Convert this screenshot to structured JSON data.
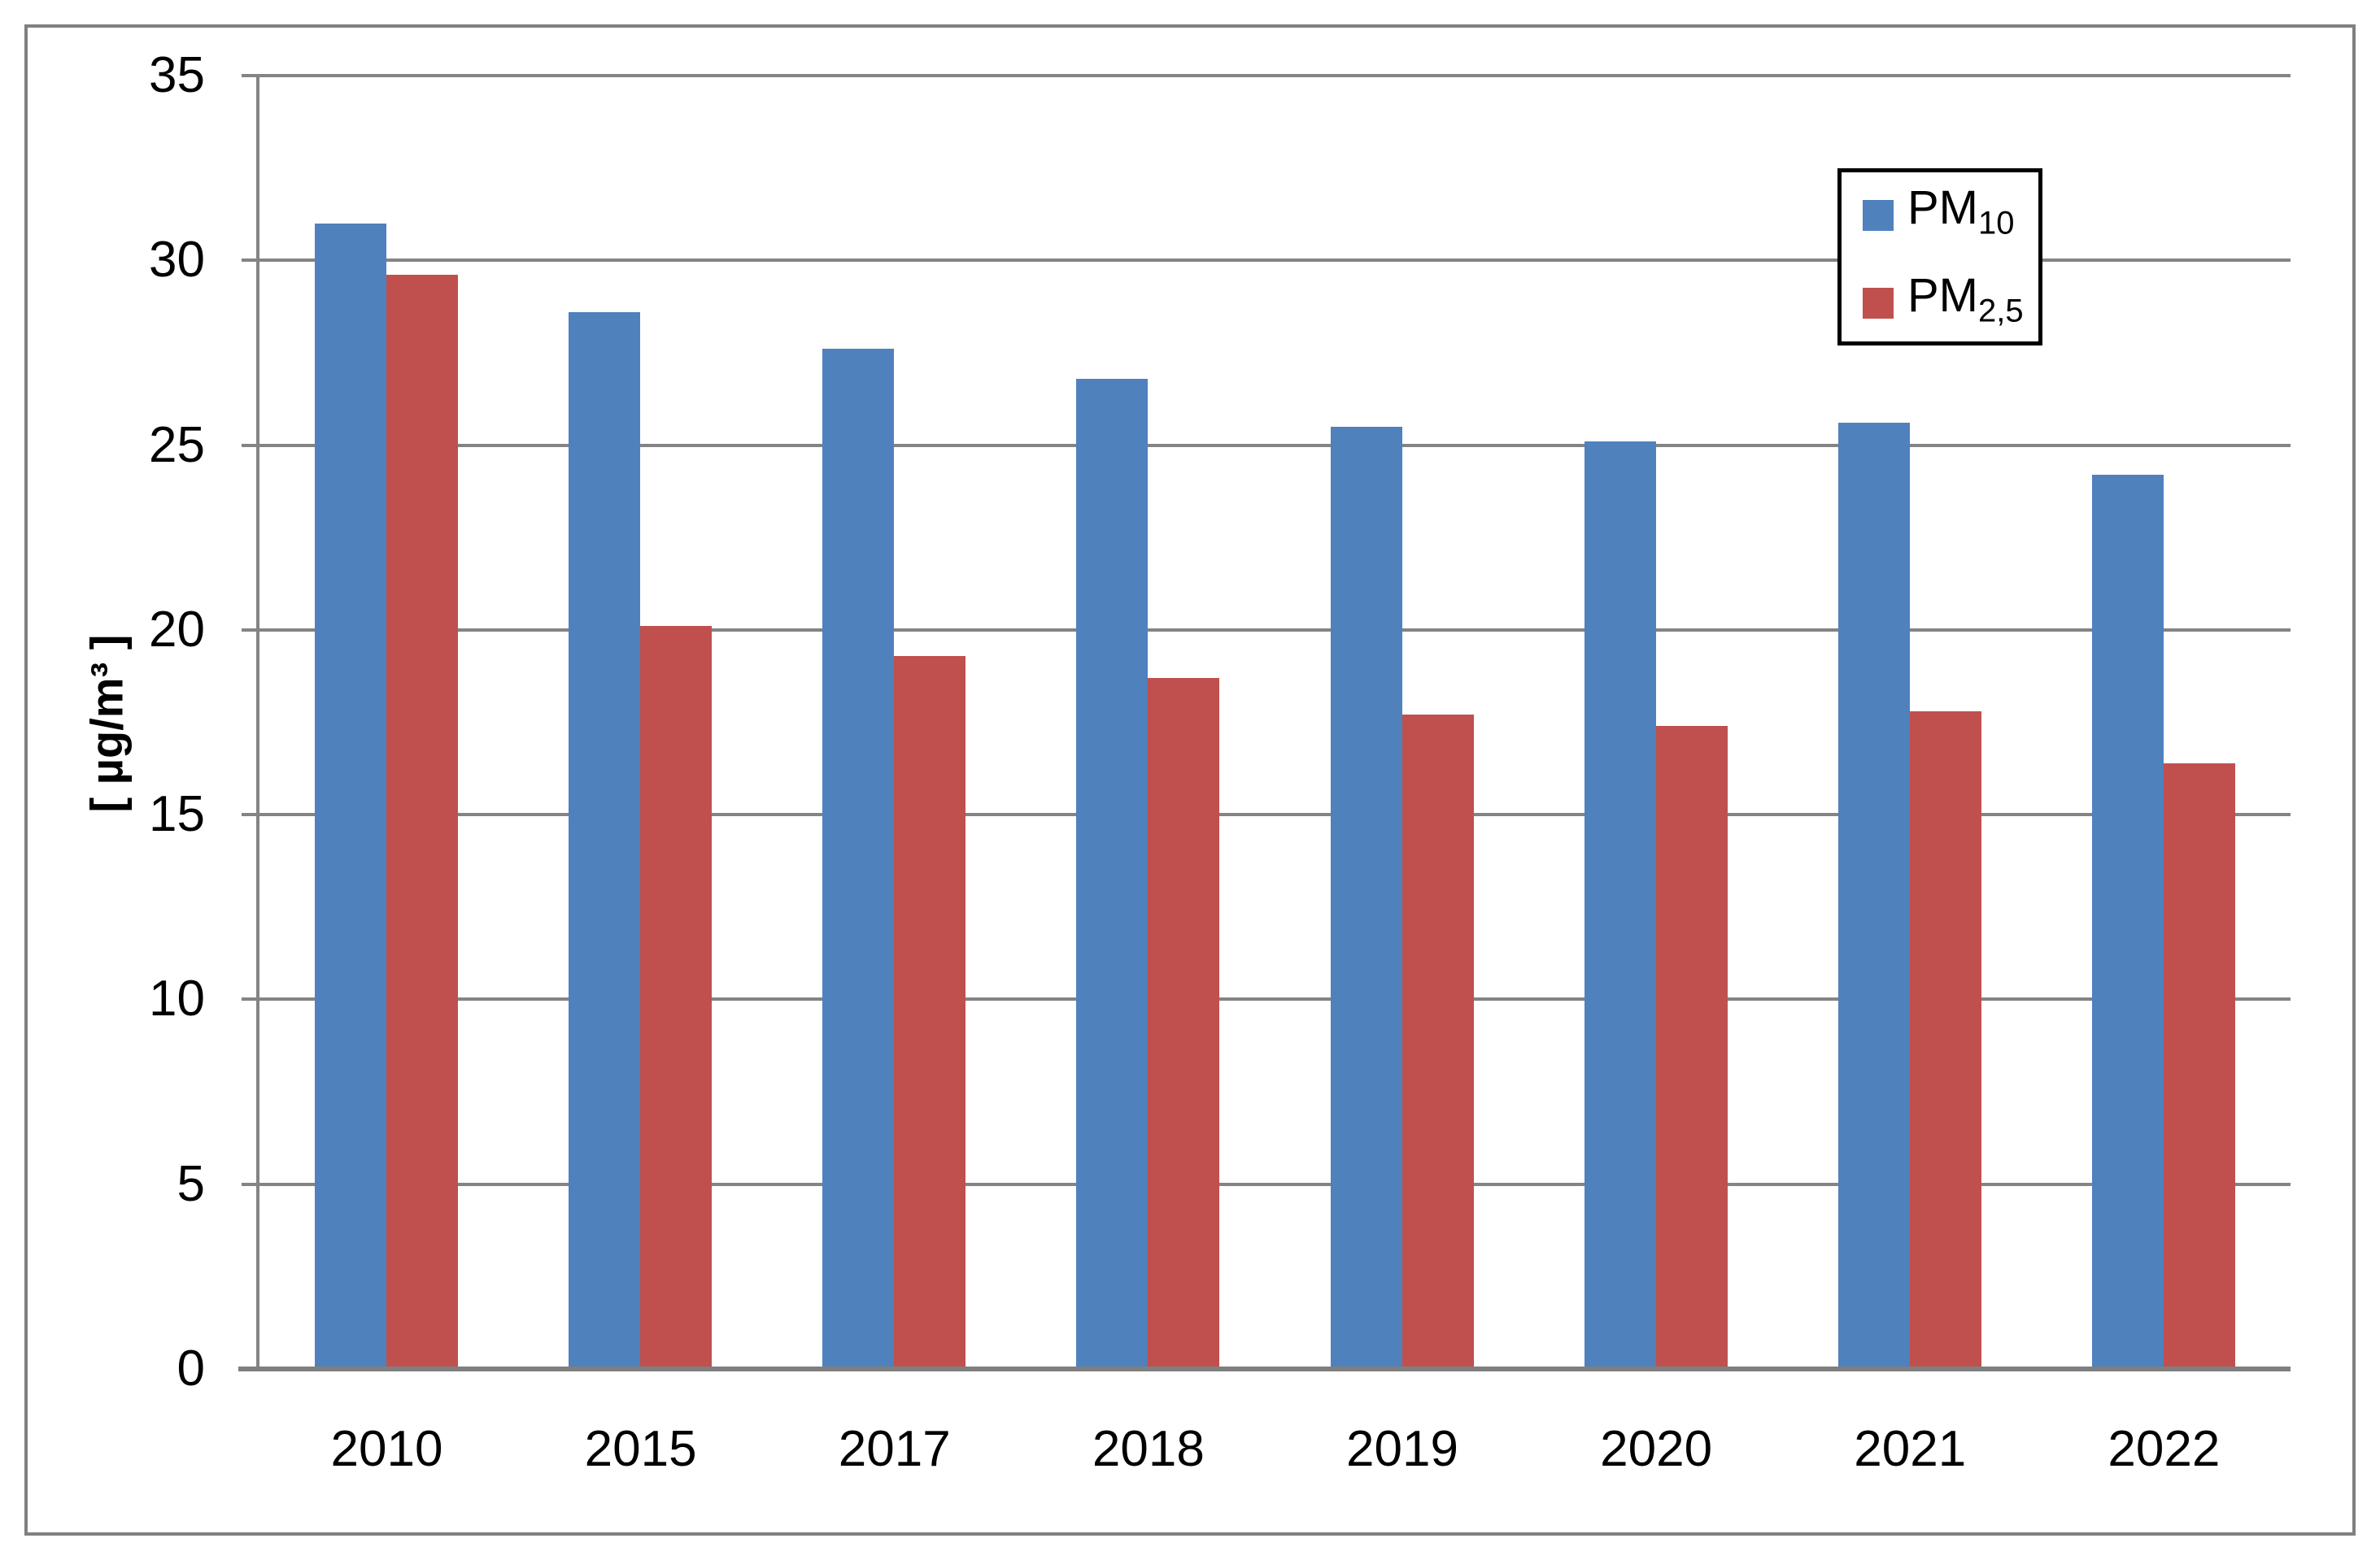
{
  "figure": {
    "background": "#FFFFFF",
    "border_color": "#808080"
  },
  "chart_data": {
    "type": "bar",
    "categories": [
      "2010",
      "2015",
      "2017",
      "2018",
      "2019",
      "2020",
      "2021",
      "2022"
    ],
    "series": [
      {
        "name": "PM10",
        "label_base": "PM",
        "label_sub": "10",
        "color": "#4F81BD",
        "values": [
          31.0,
          28.6,
          27.6,
          26.8,
          25.5,
          25.1,
          25.6,
          24.2
        ]
      },
      {
        "name": "PM2,5",
        "label_base": "PM",
        "label_sub": "2,5",
        "color": "#C0504D",
        "values": [
          29.6,
          20.1,
          19.3,
          18.7,
          17.7,
          17.4,
          17.8,
          16.4
        ]
      }
    ],
    "title": "",
    "xlabel": "",
    "ylabel": "[ µg/m³ ]",
    "ylim": [
      0,
      35
    ],
    "yticks": [
      0,
      5,
      10,
      15,
      20,
      25,
      30,
      35
    ],
    "grid": true,
    "gridline_color": "#848484",
    "axis_color": "#7F7F7F",
    "legend_position": "top-right",
    "legend_border_color": "#000000"
  }
}
